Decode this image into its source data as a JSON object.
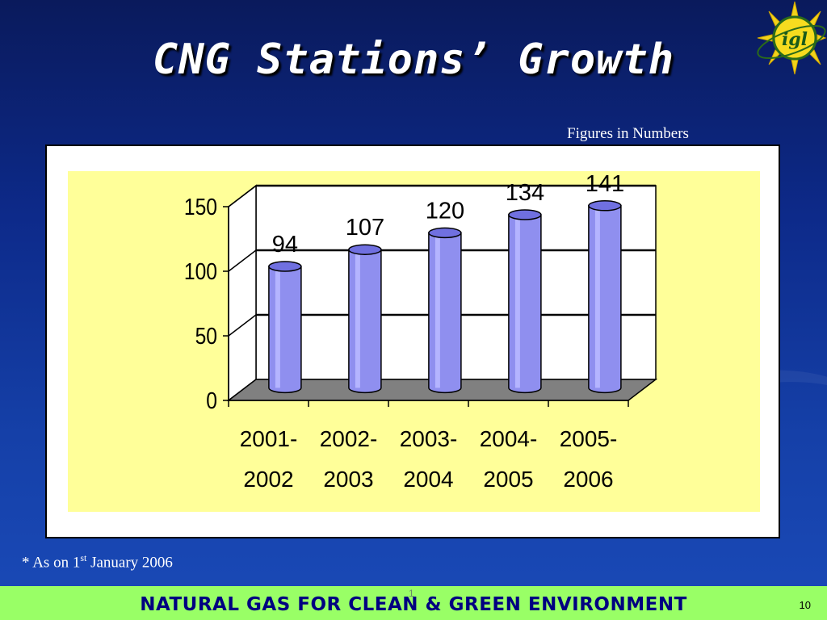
{
  "slide": {
    "title": "CNG Stations’ Growth",
    "figures_note": "Figures in Numbers",
    "footnote_prefix": "* As on 1",
    "footnote_sup": "st",
    "footnote_suffix": " January 2006",
    "footer_text": "NATURAL GAS FOR CLEAN & GREEN ENVIRONMENT",
    "footer_mark": "1",
    "page_number": "10",
    "logo_text": "igl"
  },
  "colors": {
    "bar": "#8f8fef",
    "bar_top": "#7070e0",
    "plot_background": "#ffff99",
    "floor": "#808080",
    "footer": "#99ff66",
    "footer_text": "#000080"
  },
  "chart_data": {
    "type": "bar",
    "style": "3d-cylinder",
    "categories": [
      [
        "2001-",
        "2002"
      ],
      [
        "2002-",
        "2003"
      ],
      [
        "2003-",
        "2004"
      ],
      [
        "2004-",
        "2005"
      ],
      [
        "2005-",
        "2006"
      ]
    ],
    "values": [
      94,
      107,
      120,
      134,
      141
    ],
    "data_labels": [
      "94",
      "107",
      "120",
      "134",
      "141"
    ],
    "y_ticks": [
      "0",
      "50",
      "100",
      "150"
    ],
    "ylim": [
      0,
      150
    ],
    "grid": true,
    "title": "",
    "xlabel": "",
    "ylabel": ""
  }
}
